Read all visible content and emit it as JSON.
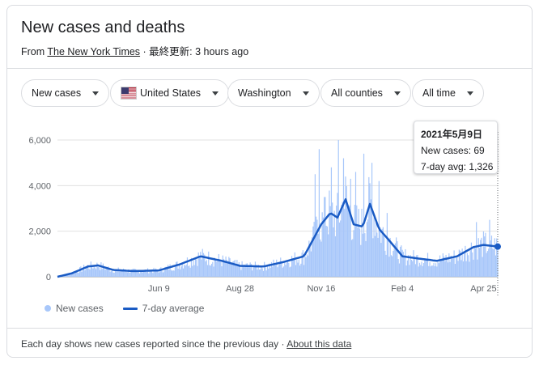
{
  "header": {
    "title": "New cases and deaths",
    "source_prefix": "From",
    "source_link": "The New York Times",
    "updated": "· 最終更新: 3 hours ago"
  },
  "filters": {
    "metric": "New cases",
    "country": "United States",
    "region": "Washington",
    "counties": "All counties",
    "time_range": "All time"
  },
  "tooltip": {
    "date": "2021年5月9日",
    "new_cases_label": "New cases:",
    "new_cases_value": "69",
    "avg_label": "7-day avg:",
    "avg_value": "1,326"
  },
  "legend": {
    "series1": "New cases",
    "series2": "7-day average"
  },
  "footer": {
    "note": "Each day shows new cases reported since the previous day",
    "separator": "·",
    "about_link": "About this data"
  },
  "colors": {
    "bars": "#a8c7fa",
    "average_line": "#1a5bc4",
    "gridline": "#e0e0e0"
  },
  "chart_data": {
    "type": "bar",
    "x_ticks": [
      "Jun 9",
      "Aug 28",
      "Nov 16",
      "Feb 4",
      "Apr 25"
    ],
    "y_ticks": [
      "0",
      "2,000",
      "4,000",
      "6,000"
    ],
    "ylim": [
      0,
      6000
    ],
    "grid": true,
    "legend_placement": "bottom-left",
    "series": [
      {
        "name": "7-day average",
        "points": [
          [
            "2020-03-01",
            0
          ],
          [
            "2020-03-15",
            150
          ],
          [
            "2020-03-31",
            450
          ],
          [
            "2020-04-10",
            500
          ],
          [
            "2020-04-25",
            300
          ],
          [
            "2020-05-15",
            250
          ],
          [
            "2020-06-09",
            280
          ],
          [
            "2020-06-30",
            550
          ],
          [
            "2020-07-20",
            900
          ],
          [
            "2020-08-10",
            700
          ],
          [
            "2020-08-28",
            480
          ],
          [
            "2020-09-20",
            450
          ],
          [
            "2020-10-10",
            650
          ],
          [
            "2020-10-30",
            900
          ],
          [
            "2020-11-10",
            1800
          ],
          [
            "2020-11-16",
            2300
          ],
          [
            "2020-11-25",
            2800
          ],
          [
            "2020-12-02",
            2600
          ],
          [
            "2020-12-10",
            3400
          ],
          [
            "2020-12-18",
            2300
          ],
          [
            "2020-12-27",
            2200
          ],
          [
            "2021-01-03",
            3200
          ],
          [
            "2021-01-12",
            2100
          ],
          [
            "2021-01-20",
            1700
          ],
          [
            "2021-02-04",
            900
          ],
          [
            "2021-02-20",
            800
          ],
          [
            "2021-03-10",
            700
          ],
          [
            "2021-03-30",
            900
          ],
          [
            "2021-04-15",
            1300
          ],
          [
            "2021-04-25",
            1400
          ],
          [
            "2021-05-09",
            1326
          ]
        ]
      },
      {
        "name": "New cases",
        "highlights": [
          [
            "2020-11-10",
            4500
          ],
          [
            "2020-11-14",
            5600
          ],
          [
            "2020-11-20",
            3500
          ],
          [
            "2020-11-26",
            4800
          ],
          [
            "2020-12-03",
            6000
          ],
          [
            "2020-12-08",
            5200
          ],
          [
            "2020-12-15",
            4300
          ],
          [
            "2020-12-20",
            4600
          ],
          [
            "2020-12-28",
            5400
          ],
          [
            "2021-01-05",
            5000
          ],
          [
            "2021-01-12",
            4200
          ],
          [
            "2021-01-20",
            2800
          ],
          [
            "2021-04-18",
            2400
          ],
          [
            "2021-05-01",
            2500
          ]
        ]
      }
    ]
  }
}
